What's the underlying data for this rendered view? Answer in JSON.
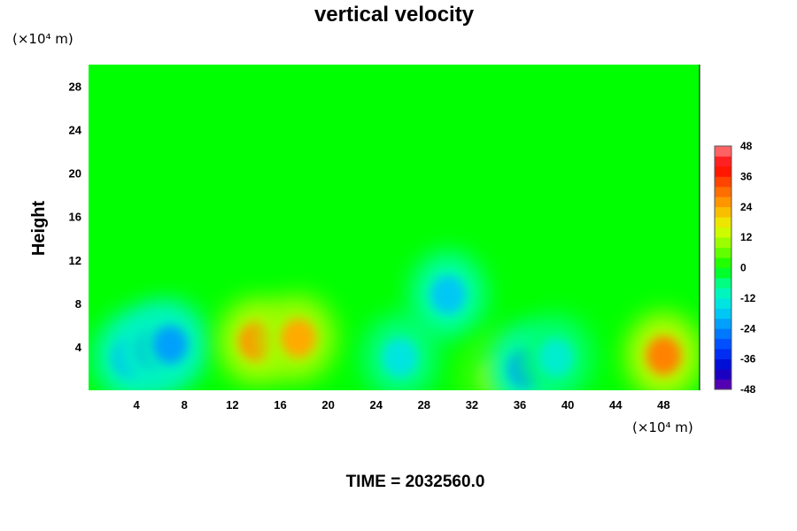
{
  "chart_data": {
    "type": "heatmap",
    "title": "vertical velocity",
    "ylabel": "Height",
    "x_unit": "(×10⁴ m)",
    "y_unit": "(×10⁴ m)",
    "xlim": [
      0,
      51
    ],
    "ylim": [
      0,
      30
    ],
    "x_ticks": [
      "4",
      "8",
      "12",
      "16",
      "20",
      "24",
      "28",
      "32",
      "36",
      "40",
      "44",
      "48"
    ],
    "y_ticks": [
      "4",
      "8",
      "12",
      "16",
      "20",
      "24",
      "28"
    ],
    "colorbar": {
      "range": [
        -48,
        48
      ],
      "step": 4,
      "ticks": [
        "48",
        "36",
        "24",
        "12",
        "0",
        "-12",
        "-24",
        "-36",
        "-48"
      ]
    },
    "background_value": 0,
    "features": [
      {
        "x": 3.5,
        "y": 3,
        "value": -20
      },
      {
        "x": 5.5,
        "y": 3.8,
        "value": -26
      },
      {
        "x": 6.8,
        "y": 4.2,
        "value": -22
      },
      {
        "x": 14,
        "y": 4.5,
        "value": 26
      },
      {
        "x": 17.5,
        "y": 4.8,
        "value": 24
      },
      {
        "x": 26,
        "y": 3,
        "value": -14
      },
      {
        "x": 30,
        "y": 8.8,
        "value": -18
      },
      {
        "x": 34,
        "y": 1.2,
        "value": 8
      },
      {
        "x": 36.5,
        "y": 2,
        "value": -22
      },
      {
        "x": 39,
        "y": 3,
        "value": -12
      },
      {
        "x": 48,
        "y": 3.2,
        "value": 28
      }
    ],
    "annotation": "TIME = 2032560.0",
    "grid": false
  }
}
